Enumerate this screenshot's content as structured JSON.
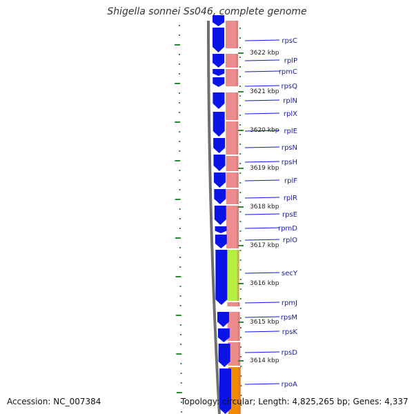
{
  "title": "Shigella sonnei Ss046, complete genome",
  "footer": {
    "accession": "Accession: NC_007384",
    "topology": "Topology: circular; Length: 4,825,265 bp; Genes: 4,337"
  },
  "colors": {
    "forward_cds": "#0a14e6",
    "rna_track": "#ec8c8c",
    "secY_highlight": "#b5f040",
    "rpoA_highlight": "#f08a00",
    "backbone": "#707070",
    "ticks": "#2d8a2d",
    "label_text": "#1a1aa8"
  },
  "chart_data": {
    "type": "genome-map",
    "scale_unit": "kbp",
    "scale_ticks": [
      "3622 kbp",
      "3621 kbp",
      "3620 kbp",
      "3619 kbp",
      "3618 kbp",
      "3617 kbp",
      "3616 kbp",
      "3615 kbp",
      "3614 kbp"
    ],
    "genes": [
      "rpsC",
      "rplP",
      "rpmC",
      "rpsQ",
      "rplN",
      "rplX",
      "rplE",
      "rpsN",
      "rpsH",
      "rplF",
      "rplR",
      "rpsE",
      "rpmD",
      "rplO",
      "secY",
      "rpmJ",
      "rpsM",
      "rpsK",
      "rpsD",
      "rpoA"
    ]
  }
}
